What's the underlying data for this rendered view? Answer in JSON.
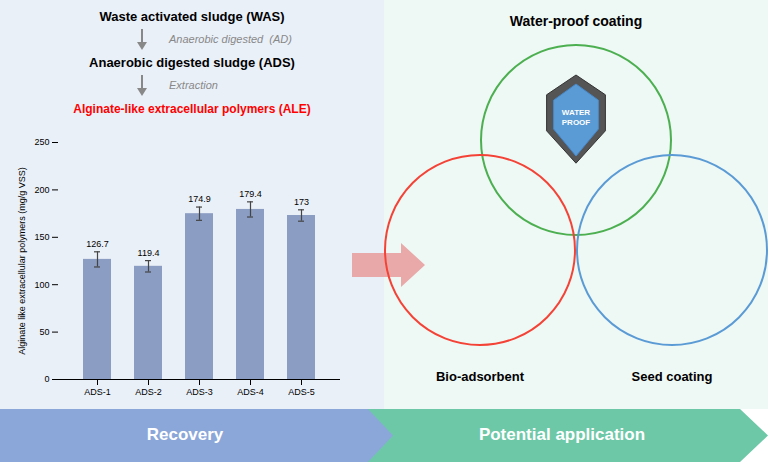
{
  "chart_data": {
    "type": "bar",
    "categories": [
      "ADS-1",
      "ADS-2",
      "ADS-3",
      "ADS-4",
      "ADS-5"
    ],
    "values": [
      126.7,
      119.4,
      174.9,
      179.4,
      173.0
    ],
    "errors": [
      8,
      6,
      7,
      8,
      6
    ],
    "color": "#8B9DC3",
    "ylabel": "Alginate like extracellular polymers (mg/g VSS)",
    "ylim": [
      0,
      250
    ],
    "yticks": [
      0,
      50,
      100,
      150,
      200,
      250
    ],
    "data_labels": true,
    "annotations": [
      "Waste activated sludge (WAS)",
      "Anaerobic digested  (AD)",
      "Anaerobic digested sludge (ADS)",
      "Extraction",
      "Alginate-like extracellular polymers (ALE)",
      "Water-proof coating",
      "WATER\nPROOF",
      "Bio-adsorbent",
      "Seed coating",
      "Recovery",
      "Potential application"
    ]
  }
}
